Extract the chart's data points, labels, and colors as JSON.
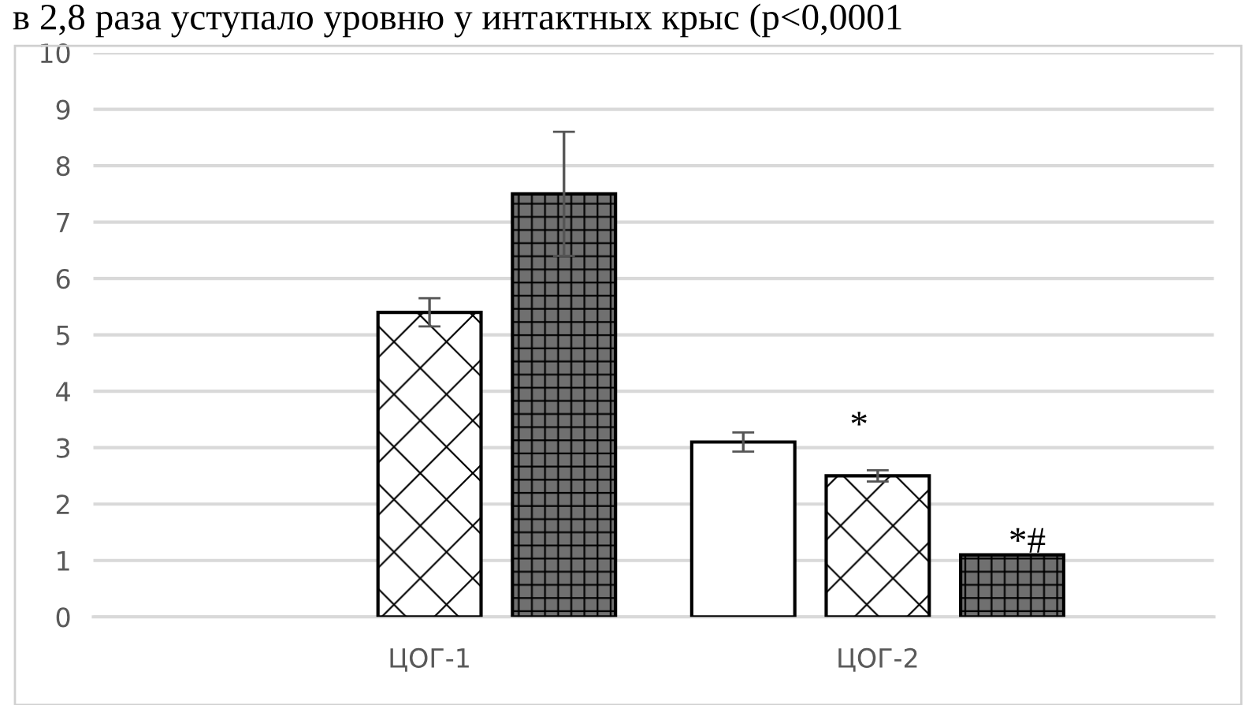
{
  "chart_data": {
    "type": "bar",
    "categories": [
      "ЦОГ-1",
      "ЦОГ-2"
    ],
    "series": [
      {
        "color": "#ffffff",
        "values": [
          null,
          3.1
        ],
        "errors": [
          null,
          0.17
        ]
      },
      {
        "color": "#ffffff",
        "values": [
          5.4,
          2.5
        ],
        "errors": [
          0.25,
          0.1
        ]
      },
      {
        "color": "#707070",
        "values": [
          7.5,
          1.1
        ],
        "errors": [
          1.1,
          null
        ]
      }
    ],
    "ylim": [
      0,
      10
    ],
    "yticks": [
      0,
      1,
      2,
      3,
      4,
      5,
      6,
      7,
      8,
      9,
      10
    ],
    "grid": "y",
    "legend": false,
    "annotations": [
      "в 2,8 раза уступало уровню у интактных крыс (p<0,0001",
      "*",
      "*#"
    ]
  }
}
